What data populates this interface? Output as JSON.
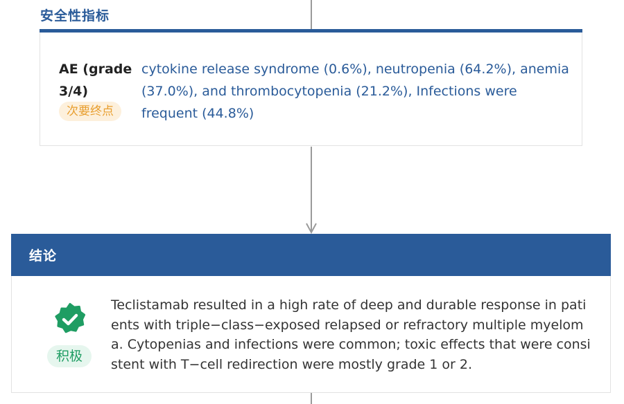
{
  "safety": {
    "title": "安全性指标",
    "metric": {
      "name": "AE (grade 3/4)",
      "badge": "次要终点",
      "value": "cytokine release syndrome (0.6%), neutropenia (64.2%), anemia (37.0%), and thrombocytopenia (21.2%), Infections were frequent (44.8%)"
    }
  },
  "conclusion": {
    "title": "结论",
    "icon": "verified-badge-icon",
    "badge": "积极",
    "text": "Teclistamab resulted in a high rate of deep and durable response in patients with triple−class−exposed relapsed or refractory multiple myeloma. Cytopenias and infections were common; toxic effects that were consistent with T−cell redirection were mostly grade 1 or 2."
  },
  "colors": {
    "primary": "#2a5b99",
    "secondary_badge_bg": "#fdf0dc",
    "secondary_badge_text": "#e89e2e",
    "positive_badge_bg": "#e6f6ee",
    "positive": "#1f9d63",
    "connector": "#9a9a9a"
  }
}
